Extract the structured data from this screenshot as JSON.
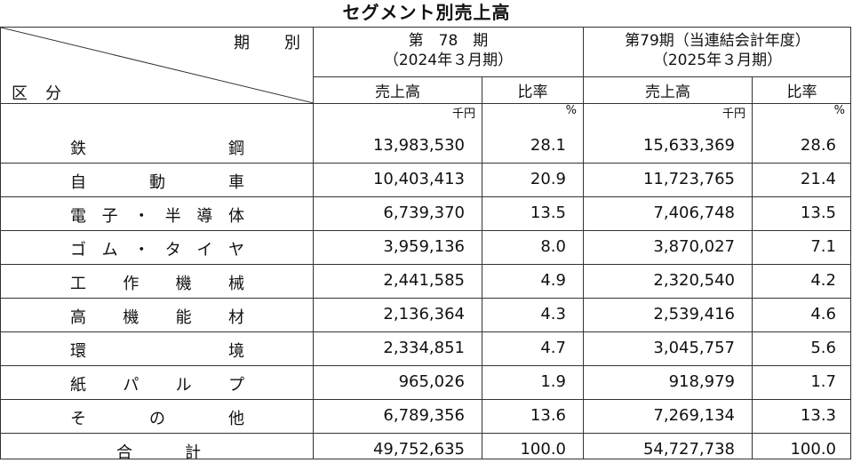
{
  "title": "セグメント別売上高",
  "header": {
    "period_label": "期　　別",
    "segment_label": "区　分",
    "period78": {
      "line1": "第　78　期",
      "line2": "（2024年３月期）"
    },
    "period79": {
      "line1": "第79期（当連結会計年度）",
      "line2": "（2025年３月期）"
    },
    "sales": "売上高",
    "ratio": "比率",
    "unit_sales": "千円",
    "unit_ratio": "%"
  },
  "rows": [
    {
      "chars": [
        "鉄",
        "鋼"
      ],
      "s78": "13,983,530",
      "r78": "28.1",
      "s79": "15,633,369",
      "r79": "28.6"
    },
    {
      "chars": [
        "自",
        "動",
        "車"
      ],
      "s78": "10,403,413",
      "r78": "20.9",
      "s79": "11,723,765",
      "r79": "21.4"
    },
    {
      "chars": [
        "電",
        "子",
        "・",
        "半",
        "導",
        "体"
      ],
      "s78": "6,739,370",
      "r78": "13.5",
      "s79": "7,406,748",
      "r79": "13.5"
    },
    {
      "chars": [
        "ゴ",
        "ム",
        "・",
        "タ",
        "イ",
        "ヤ"
      ],
      "s78": "3,959,136",
      "r78": "8.0",
      "s79": "3,870,027",
      "r79": "7.1"
    },
    {
      "chars": [
        "工",
        "作",
        "機",
        "械"
      ],
      "s78": "2,441,585",
      "r78": "4.9",
      "s79": "2,320,540",
      "r79": "4.2"
    },
    {
      "chars": [
        "高",
        "機",
        "能",
        "材"
      ],
      "s78": "2,136,364",
      "r78": "4.3",
      "s79": "2,539,416",
      "r79": "4.6"
    },
    {
      "chars": [
        "環",
        "境"
      ],
      "s78": "2,334,851",
      "r78": "4.7",
      "s79": "3,045,757",
      "r79": "5.6"
    },
    {
      "chars": [
        "紙",
        "パ",
        "ル",
        "プ"
      ],
      "s78": "965,026",
      "r78": "1.9",
      "s79": "918,979",
      "r79": "1.7"
    },
    {
      "chars": [
        "そ",
        "の",
        "他"
      ],
      "s78": "6,789,356",
      "r78": "13.6",
      "s79": "7,269,134",
      "r79": "13.3"
    }
  ],
  "total": {
    "chars": [
      "合",
      "計"
    ],
    "s78": "49,752,635",
    "r78": "100.0",
    "s79": "54,727,738",
    "r79": "100.0"
  }
}
